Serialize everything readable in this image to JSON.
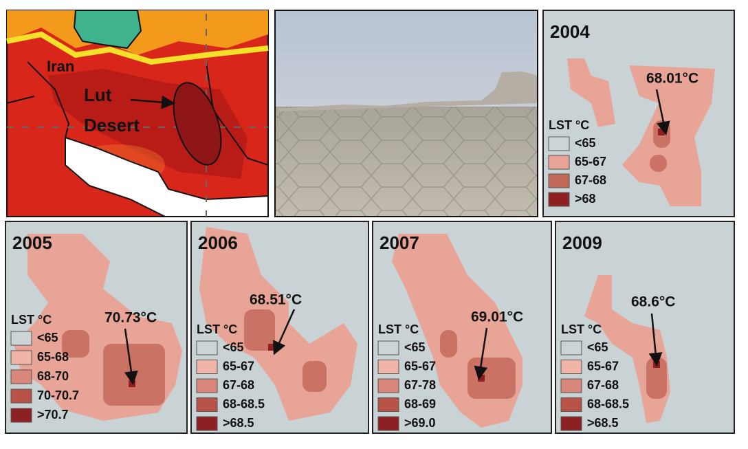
{
  "overview_map": {
    "country_label": "Iran",
    "region_label": [
      "Lut",
      "Desert"
    ]
  },
  "lst_panels": [
    {
      "year": "2004",
      "peak": "68.01°C",
      "legend_title": "LST °C",
      "legend": [
        "<65",
        "65-67",
        "67-68",
        ">68"
      ]
    },
    {
      "year": "2005",
      "peak": "70.73°C",
      "legend_title": "LST °C",
      "legend": [
        "<65",
        "65-68",
        "68-70",
        "70-70.7",
        ">70.7"
      ]
    },
    {
      "year": "2006",
      "peak": "68.51°C",
      "legend_title": "LST °C",
      "legend": [
        "<65",
        "65-67",
        "67-68",
        "68-68.5",
        ">68.5"
      ]
    },
    {
      "year": "2007",
      "peak": "69.01°C",
      "legend_title": "LST °C",
      "legend": [
        "<65",
        "65-67",
        "67-78",
        "68-69",
        ">69.0"
      ]
    },
    {
      "year": "2009",
      "peak": "68.6°C",
      "legend_title": "LST °C",
      "legend": [
        "<65",
        "65-67",
        "67-68",
        "68-68.5",
        ">68.5"
      ]
    }
  ]
}
